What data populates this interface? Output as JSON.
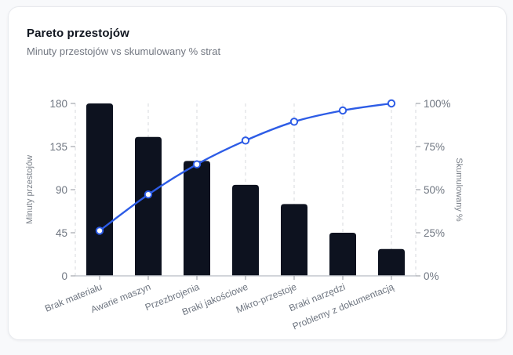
{
  "card": {
    "title": "Pareto przestojów",
    "subtitle": "Minuty przestojów vs skumulowany % strat"
  },
  "chart_data": {
    "type": "bar",
    "subtype": "pareto-combo-bar-line",
    "title": "Pareto przestojów",
    "subtitle": "Minuty przestojów vs skumulowany % strat",
    "categories": [
      "Brak materiału",
      "Awarie maszyn",
      "Przezbrojenia",
      "Braki jakościowe",
      "Mikro-przestoje",
      "Braki narzędzi",
      "Problemy z dokumentacją"
    ],
    "series": [
      {
        "name": "Minuty przestojów",
        "type": "bar",
        "axis": "left",
        "values": [
          180,
          145,
          120,
          95,
          75,
          45,
          28
        ]
      },
      {
        "name": "Skumulowany %",
        "type": "line",
        "axis": "right",
        "values": [
          26.2,
          47.2,
          64.7,
          78.5,
          89.4,
          95.9,
          100
        ]
      }
    ],
    "ylabel_left": "Minuty przestojów",
    "ylabel_right": "Skumulowany %",
    "y_left_ticks": [
      0,
      45,
      90,
      135,
      180
    ],
    "y_left_range": [
      0,
      180
    ],
    "y_right_ticks": [
      "0%",
      "25%",
      "50%",
      "75%",
      "100%"
    ],
    "y_right_tick_values": [
      0,
      25,
      50,
      75,
      100
    ],
    "y_right_range": [
      0,
      100
    ],
    "grid": "vertical-dashed",
    "legend": "none",
    "colors": {
      "bar": "#0d121f",
      "line": "#2d5ce6",
      "marker_fill": "#ffffff",
      "grid": "#d7dade",
      "axis_line": "#c3c7cd",
      "tick_mark": "#90959d",
      "tick_text": "#6f7681",
      "axis_label_text": "#7b818a"
    }
  }
}
